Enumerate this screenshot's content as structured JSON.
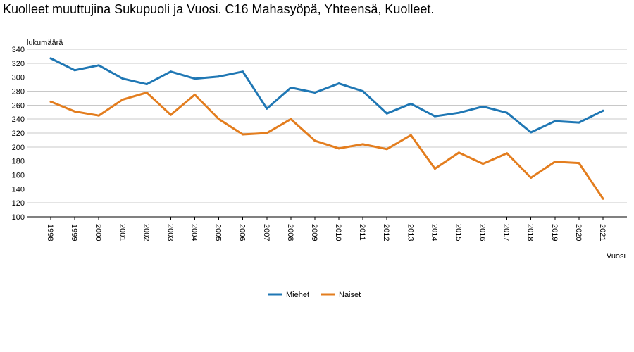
{
  "page": {
    "title": "Kuolleet muuttujina Sukupuoli ja Vuosi. C16 Mahasyöpä, Yhteensä, Kuolleet."
  },
  "chart_data": {
    "type": "line",
    "title": "Kuolleet muuttujina Sukupuoli ja Vuosi. C16 Mahasyöpä, Yhteensä, Kuolleet.",
    "xlabel": "Vuosi",
    "ylabel": "lukumäärä",
    "ylim": [
      100,
      340
    ],
    "yticks": [
      "100",
      "120",
      "140",
      "160",
      "180",
      "200",
      "220",
      "240",
      "260",
      "280",
      "300",
      "320",
      "340"
    ],
    "grid": true,
    "legend_position": "bottom-center",
    "x": [
      "1998",
      "1999",
      "2000",
      "2001",
      "2002",
      "2003",
      "2004",
      "2005",
      "2006",
      "2007",
      "2008",
      "2009",
      "2010",
      "2011",
      "2012",
      "2013",
      "2014",
      "2015",
      "2016",
      "2017",
      "2018",
      "2019",
      "2020",
      "2021"
    ],
    "series": [
      {
        "name": "Miehet",
        "color": "#1f77b4",
        "values": [
          327,
          310,
          317,
          298,
          290,
          308,
          298,
          301,
          308,
          255,
          285,
          278,
          291,
          280,
          248,
          262,
          244,
          249,
          258,
          249,
          221,
          237,
          235,
          252
        ]
      },
      {
        "name": "Naiset",
        "color": "#e37d1e",
        "values": [
          265,
          251,
          245,
          268,
          278,
          246,
          275,
          240,
          218,
          220,
          240,
          209,
          198,
          204,
          197,
          217,
          169,
          192,
          176,
          191,
          156,
          179,
          177,
          126
        ]
      }
    ]
  }
}
